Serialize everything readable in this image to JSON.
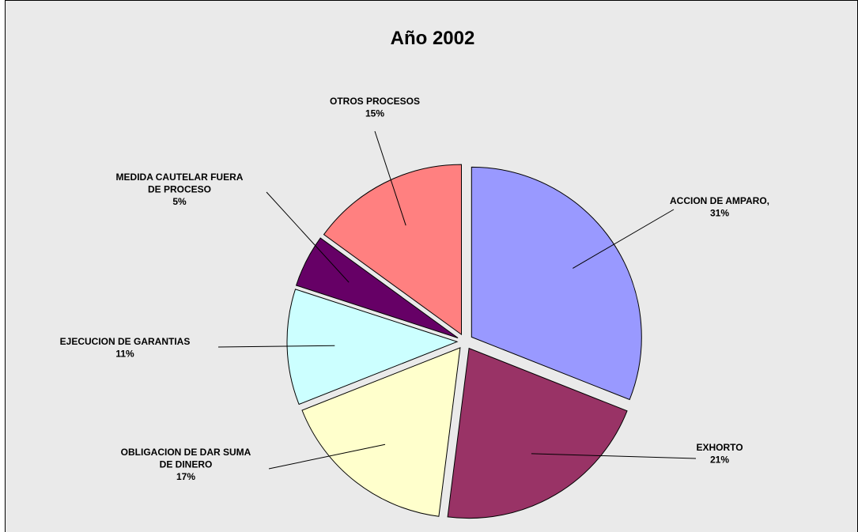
{
  "chart_data": {
    "type": "pie",
    "title": "Año 2002",
    "slices": [
      {
        "category": "ACCION DE AMPARO,",
        "label_lines": [
          "ACCION DE AMPARO,",
          "31%"
        ],
        "percent": 31,
        "color": "#9999ff"
      },
      {
        "category": "EXHORTO",
        "label_lines": [
          "EXHORTO",
          "21%"
        ],
        "percent": 21,
        "color": "#993366"
      },
      {
        "category": "OBLIGACION DE DAR SUMA DE DINERO",
        "label_lines": [
          "OBLIGACION DE DAR SUMA",
          "DE DINERO",
          "17%"
        ],
        "percent": 17,
        "color": "#ffffcc"
      },
      {
        "category": "EJECUCION DE GARANTIAS",
        "label_lines": [
          "EJECUCION DE GARANTIAS",
          "11%"
        ],
        "percent": 11,
        "color": "#ccffff"
      },
      {
        "category": "MEDIDA CAUTELAR FUERA DE PROCESO",
        "label_lines": [
          "MEDIDA CAUTELAR FUERA",
          "DE PROCESO",
          "5%"
        ],
        "percent": 5,
        "color": "#660066"
      },
      {
        "category": "OTROS PROCESOS",
        "label_lines": [
          "OTROS PROCESOS",
          "15%"
        ],
        "percent": 15,
        "color": "#ff8080"
      }
    ],
    "legend": "none",
    "background_color": "#eaeaea"
  }
}
